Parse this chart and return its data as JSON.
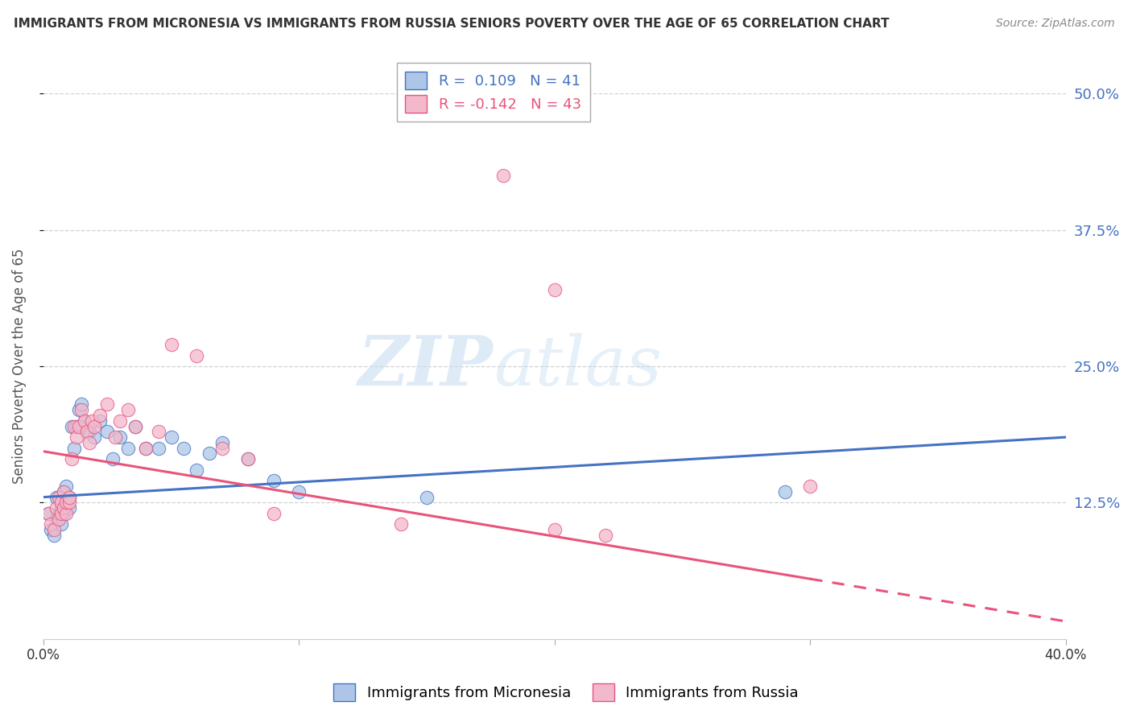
{
  "title": "IMMIGRANTS FROM MICRONESIA VS IMMIGRANTS FROM RUSSIA SENIORS POVERTY OVER THE AGE OF 65 CORRELATION CHART",
  "source": "Source: ZipAtlas.com",
  "ylabel": "Seniors Poverty Over the Age of 65",
  "legend_label_blue": "Immigrants from Micronesia",
  "legend_label_pink": "Immigrants from Russia",
  "R_blue": 0.109,
  "N_blue": 41,
  "R_pink": -0.142,
  "N_pink": 43,
  "xlim": [
    0.0,
    0.4
  ],
  "ylim": [
    0.0,
    0.5
  ],
  "xticks": [
    0.0,
    0.1,
    0.2,
    0.3,
    0.4
  ],
  "xtick_labels": [
    "0.0%",
    "",
    "",
    "",
    "40.0%"
  ],
  "ytick_labels_right": [
    "12.5%",
    "25.0%",
    "37.5%",
    "50.0%"
  ],
  "yticks_right": [
    0.125,
    0.25,
    0.375,
    0.5
  ],
  "yticks_grid": [
    0.125,
    0.25,
    0.375,
    0.5
  ],
  "watermark_zip": "ZIP",
  "watermark_atlas": "atlas",
  "color_blue": "#adc6e8",
  "color_pink": "#f2b8cb",
  "trend_blue": "#4472c4",
  "trend_pink": "#e8547a",
  "blue_dots_x": [
    0.002,
    0.003,
    0.004,
    0.005,
    0.005,
    0.006,
    0.007,
    0.007,
    0.008,
    0.008,
    0.009,
    0.009,
    0.01,
    0.01,
    0.011,
    0.012,
    0.013,
    0.014,
    0.015,
    0.015,
    0.016,
    0.018,
    0.02,
    0.022,
    0.025,
    0.027,
    0.03,
    0.033,
    0.036,
    0.04,
    0.045,
    0.05,
    0.055,
    0.06,
    0.065,
    0.07,
    0.08,
    0.09,
    0.1,
    0.15,
    0.29
  ],
  "blue_dots_y": [
    0.115,
    0.1,
    0.095,
    0.11,
    0.13,
    0.115,
    0.12,
    0.105,
    0.135,
    0.115,
    0.125,
    0.14,
    0.13,
    0.12,
    0.195,
    0.175,
    0.195,
    0.21,
    0.215,
    0.195,
    0.2,
    0.19,
    0.185,
    0.2,
    0.19,
    0.165,
    0.185,
    0.175,
    0.195,
    0.175,
    0.175,
    0.185,
    0.175,
    0.155,
    0.17,
    0.18,
    0.165,
    0.145,
    0.135,
    0.13,
    0.135
  ],
  "pink_dots_x": [
    0.002,
    0.003,
    0.004,
    0.005,
    0.006,
    0.006,
    0.007,
    0.007,
    0.008,
    0.008,
    0.009,
    0.009,
    0.01,
    0.01,
    0.011,
    0.012,
    0.013,
    0.014,
    0.015,
    0.016,
    0.017,
    0.018,
    0.019,
    0.02,
    0.022,
    0.025,
    0.028,
    0.03,
    0.033,
    0.036,
    0.04,
    0.045,
    0.05,
    0.06,
    0.07,
    0.08,
    0.09,
    0.14,
    0.18,
    0.2,
    0.22,
    0.3,
    0.2
  ],
  "pink_dots_y": [
    0.115,
    0.105,
    0.1,
    0.12,
    0.11,
    0.13,
    0.125,
    0.115,
    0.135,
    0.12,
    0.115,
    0.125,
    0.125,
    0.13,
    0.165,
    0.195,
    0.185,
    0.195,
    0.21,
    0.2,
    0.19,
    0.18,
    0.2,
    0.195,
    0.205,
    0.215,
    0.185,
    0.2,
    0.21,
    0.195,
    0.175,
    0.19,
    0.27,
    0.26,
    0.175,
    0.165,
    0.115,
    0.105,
    0.425,
    0.1,
    0.095,
    0.14,
    0.32
  ],
  "trend_blue_x0": 0.0,
  "trend_blue_y0": 0.13,
  "trend_blue_x1": 0.4,
  "trend_blue_y1": 0.185,
  "trend_pink_solid_x0": 0.0,
  "trend_pink_solid_y0": 0.172,
  "trend_pink_solid_x1": 0.3,
  "trend_pink_solid_y1": 0.055,
  "trend_pink_dash_x0": 0.3,
  "trend_pink_dash_y0": 0.055,
  "trend_pink_dash_x1": 0.4,
  "trend_pink_dash_y1": 0.016,
  "background_color": "#ffffff",
  "grid_color": "#d0d0d0"
}
